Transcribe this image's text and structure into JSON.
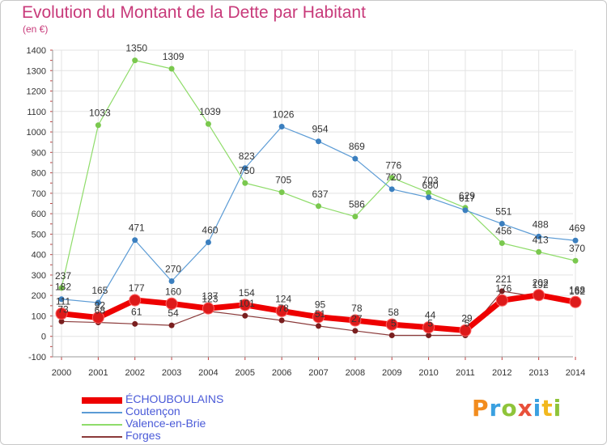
{
  "header": {
    "title": "Evolution du Montant de la Dette par Habitant",
    "unit": "(en €)"
  },
  "logo": {
    "text": "Proxiti"
  },
  "colors": {
    "title": "#c83a7a",
    "legend_text": "#4a5ad8"
  },
  "chart_data": {
    "type": "line",
    "title": "Evolution du Montant de la Dette par Habitant",
    "subtitle": "(en €)",
    "xlabel": "",
    "ylabel": "",
    "x": [
      "2000",
      "2001",
      "2002",
      "2003",
      "2004",
      "2005",
      "2006",
      "2007",
      "2008",
      "2009",
      "2010",
      "2011",
      "2012",
      "2013",
      "2014"
    ],
    "ylim": [
      -100,
      1400
    ],
    "yticks": [
      -100,
      0,
      100,
      200,
      300,
      400,
      500,
      600,
      700,
      800,
      900,
      1000,
      1100,
      1200,
      1300,
      1400
    ],
    "grid": true,
    "legend_position": "bottom",
    "series": [
      {
        "name": "ÉCHOUBOULAINS",
        "color": "#ee0000",
        "marker": "#dd1a1a",
        "width": 7,
        "values": [
          111,
          92,
          177,
          160,
          137,
          154,
          124,
          95,
          78,
          58,
          44,
          29,
          176,
          202,
          168
        ]
      },
      {
        "name": "Coutençon",
        "color": "#5b9bd5",
        "marker": "#3b7fbf",
        "width": 1.2,
        "values": [
          182,
          165,
          471,
          270,
          460,
          823,
          1026,
          954,
          869,
          720,
          680,
          617,
          551,
          488,
          469
        ]
      },
      {
        "name": "Valence-en-Brie",
        "color": "#8fdc6a",
        "marker": "#7ac84e",
        "width": 1.2,
        "values": [
          237,
          1033,
          1350,
          1309,
          1039,
          750,
          705,
          637,
          586,
          776,
          703,
          629,
          456,
          413,
          370
        ]
      },
      {
        "name": "Forges",
        "color": "#8b3a3a",
        "marker": "#7a1f1f",
        "width": 1.2,
        "values": [
          73,
          68,
          61,
          54,
          123,
          101,
          78,
          51,
          27,
          5,
          5,
          5,
          221,
          192,
          162
        ]
      }
    ]
  }
}
